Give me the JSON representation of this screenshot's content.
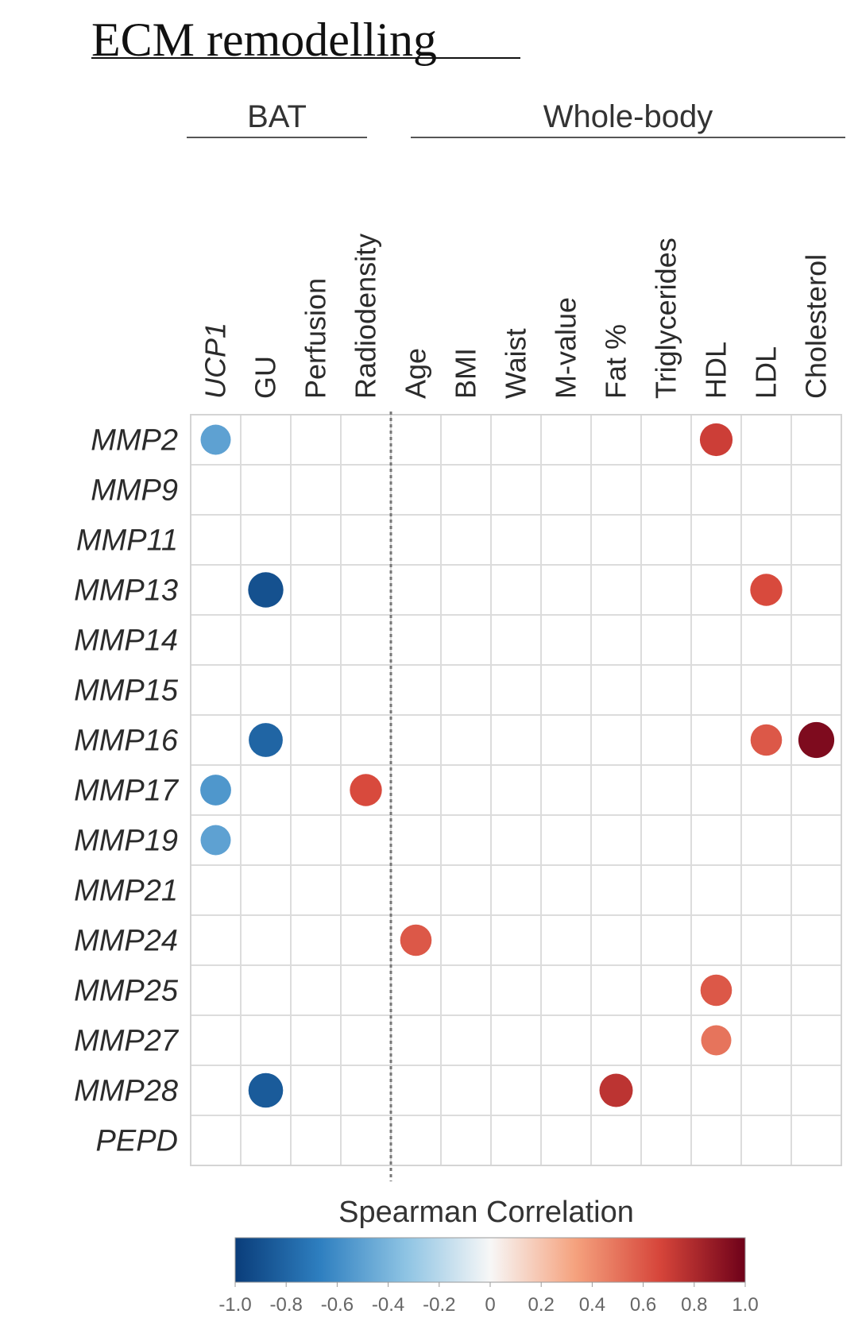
{
  "chart_data": {
    "type": "heatmap",
    "title": "ECM remodelling",
    "groups": [
      {
        "label": "BAT",
        "columns": [
          "UCP1",
          "GU",
          "Perfusion",
          "Radiodensity"
        ]
      },
      {
        "label": "Whole-body",
        "columns": [
          "Age",
          "BMI",
          "Waist",
          "M-value",
          "Fat %",
          "Triglycerides",
          "HDL",
          "LDL",
          "Cholesterol"
        ]
      }
    ],
    "columns": [
      "UCP1",
      "GU",
      "Perfusion",
      "Radiodensity",
      "Age",
      "BMI",
      "Waist",
      "M-value",
      "Fat %",
      "Triglycerides",
      "HDL",
      "LDL",
      "Cholesterol"
    ],
    "italic_columns": [
      "UCP1"
    ],
    "rows": [
      "MMP2",
      "MMP9",
      "MMP11",
      "MMP13",
      "MMP14",
      "MMP15",
      "MMP16",
      "MMP17",
      "MMP19",
      "MMP21",
      "MMP24",
      "MMP25",
      "MMP27",
      "MMP28",
      "PEPD"
    ],
    "cells": [
      {
        "row": "MMP2",
        "col": "UCP1",
        "value": -0.5
      },
      {
        "row": "MMP2",
        "col": "HDL",
        "value": 0.7
      },
      {
        "row": "MMP13",
        "col": "GU",
        "value": -0.9
      },
      {
        "row": "MMP13",
        "col": "LDL",
        "value": 0.65
      },
      {
        "row": "MMP16",
        "col": "GU",
        "value": -0.8
      },
      {
        "row": "MMP16",
        "col": "LDL",
        "value": 0.6
      },
      {
        "row": "MMP16",
        "col": "Cholesterol",
        "value": 0.95
      },
      {
        "row": "MMP17",
        "col": "UCP1",
        "value": -0.55
      },
      {
        "row": "MMP17",
        "col": "Radiodensity",
        "value": 0.65
      },
      {
        "row": "MMP19",
        "col": "UCP1",
        "value": -0.5
      },
      {
        "row": "MMP24",
        "col": "Age",
        "value": 0.6
      },
      {
        "row": "MMP25",
        "col": "HDL",
        "value": 0.6
      },
      {
        "row": "MMP27",
        "col": "HDL",
        "value": 0.5
      },
      {
        "row": "MMP28",
        "col": "GU",
        "value": -0.85
      },
      {
        "row": "MMP28",
        "col": "Fat %",
        "value": 0.75
      }
    ],
    "legend": {
      "title": "Spearman Correlation",
      "ticks": [
        "-1.0",
        "-0.8",
        "-0.6",
        "-0.4",
        "-0.2",
        "0",
        "0.2",
        "0.4",
        "0.6",
        "0.8",
        "1.0"
      ],
      "range": [
        -1.0,
        1.0
      ],
      "colors": [
        "#0a3d7a",
        "#2e7fc0",
        "#8dc3e3",
        "#f7f7f7",
        "#f5a27e",
        "#d6453a",
        "#6e0119"
      ]
    },
    "divider_after_column": "Radiodensity"
  }
}
